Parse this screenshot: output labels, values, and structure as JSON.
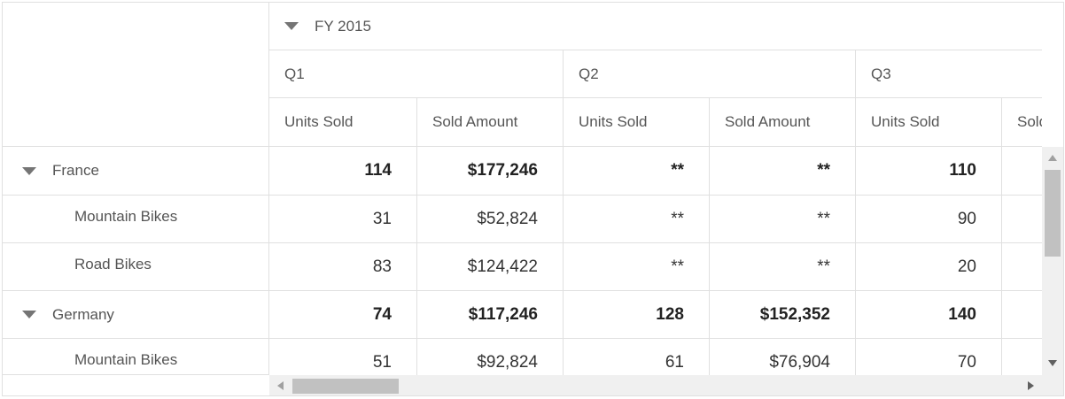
{
  "column_headers": {
    "year": "FY 2015",
    "quarters": [
      "Q1",
      "Q2",
      "Q3"
    ],
    "measures": [
      "Units Sold",
      "Sold Amount",
      "Units Sold",
      "Sold Amount",
      "Units Sold",
      "Sold Amount"
    ]
  },
  "rows": [
    {
      "label": "France",
      "type": "group",
      "values": [
        "114",
        "$177,246",
        "**",
        "**",
        "110"
      ]
    },
    {
      "label": "Mountain Bikes",
      "type": "item",
      "values": [
        "31",
        "$52,824",
        "**",
        "**",
        "90"
      ]
    },
    {
      "label": "Road Bikes",
      "type": "item",
      "values": [
        "83",
        "$124,422",
        "**",
        "**",
        "20"
      ]
    },
    {
      "label": "Germany",
      "type": "group",
      "values": [
        "74",
        "$117,246",
        "128",
        "$152,352",
        "140"
      ]
    },
    {
      "label": "Mountain Bikes",
      "type": "item",
      "values": [
        "51",
        "$92,824",
        "61",
        "$76,904",
        "70"
      ]
    }
  ],
  "icons": {
    "expand": "caret-down-icon",
    "scroll_up": "scroll-up-arrow-icon",
    "scroll_down": "scroll-down-arrow-icon",
    "scroll_left": "scroll-left-arrow-icon",
    "scroll_right": "scroll-right-arrow-icon"
  }
}
